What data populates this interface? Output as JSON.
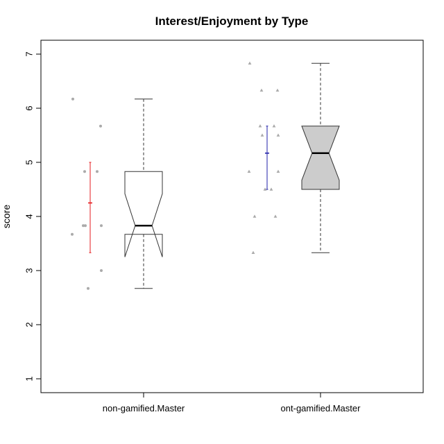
{
  "chart_data": {
    "type": "box",
    "title": "Interest/Enjoyment by Type",
    "xlabel": "",
    "ylabel": "score",
    "ylim": [
      0.75,
      7.3
    ],
    "yticks": [
      1,
      2,
      3,
      4,
      5,
      6,
      7
    ],
    "grid": false,
    "categories": [
      "non-gamified.Master",
      "ont-gamified.Master"
    ],
    "boxes": [
      {
        "name": "non-gamified.Master",
        "fill": "#ffffff",
        "whisker_low": 2.67,
        "q1": 3.67,
        "median": 3.83,
        "q3": 4.83,
        "whisker_high": 6.17,
        "notch_low": 3.25,
        "notch_high": 4.42
      },
      {
        "name": "ont-gamified.Master",
        "fill": "#cccccc",
        "whisker_low": 3.33,
        "q1": 4.5,
        "median": 5.17,
        "q3": 5.67,
        "whisker_high": 6.83,
        "notch_low": 4.67,
        "notch_high": 5.67
      }
    ],
    "mean_ci": [
      {
        "group": "non-gamified.Master",
        "mean": 4.25,
        "low": 3.33,
        "high": 5.0,
        "color": "#e41a1c"
      },
      {
        "group": "ont-gamified.Master",
        "mean": 5.17,
        "low": 4.5,
        "high": 5.67,
        "color": "#1f1fa8"
      }
    ],
    "points": [
      {
        "group": "non-gamified.Master",
        "marker": "circle",
        "values": [
          6.17,
          5.67,
          4.83,
          4.83,
          3.83,
          3.83,
          3.83,
          3.67,
          3.0,
          2.67
        ]
      },
      {
        "group": "ont-gamified.Master",
        "marker": "triangle",
        "values": [
          6.83,
          6.33,
          6.33,
          5.67,
          5.67,
          5.5,
          5.5,
          4.83,
          4.83,
          4.5,
          4.5,
          4.0,
          4.0,
          3.33
        ]
      }
    ],
    "colors": {
      "point": "#aaaaaa",
      "box_stroke": "#333333",
      "whisker": "#555555",
      "axis": "#000000"
    }
  }
}
